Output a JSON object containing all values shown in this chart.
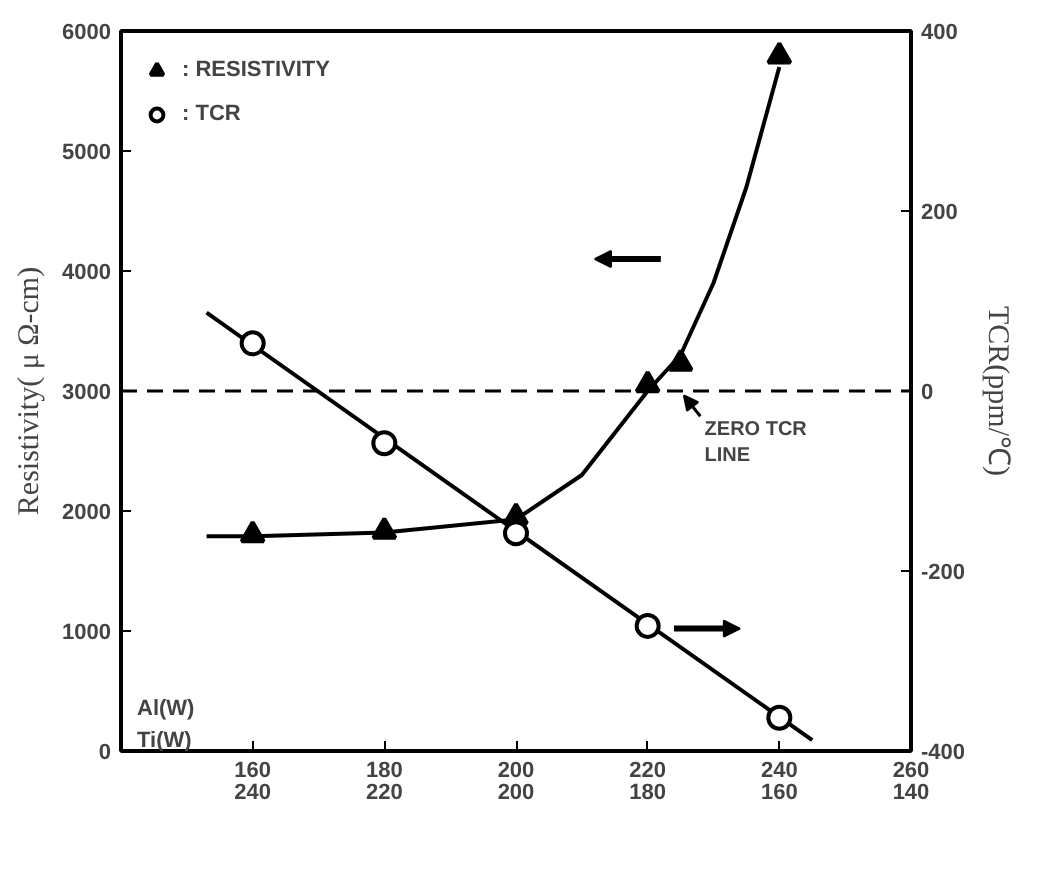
{
  "chart_data": {
    "type": "scatter",
    "xlabel": "Al(W)",
    "x2label": "Ti(W)",
    "ylabel": "Resistivity( μ Ω-cm)",
    "y2label": "TCR(ppm/℃)",
    "xlim": [
      140,
      260
    ],
    "xticks": [
      160,
      180,
      200,
      220,
      240,
      260
    ],
    "x2lim": [
      260,
      140
    ],
    "x2ticks": [
      240,
      220,
      200,
      180,
      160,
      140
    ],
    "ylim": [
      0,
      6000
    ],
    "yticks": [
      0,
      1000,
      2000,
      3000,
      4000,
      5000,
      6000
    ],
    "y2lim": [
      -400,
      400
    ],
    "y2ticks": [
      -400,
      -200,
      0,
      200,
      400
    ],
    "series": [
      {
        "type": "line",
        "color": "#000000",
        "marker": "none",
        "line_style": "solid",
        "x": [
          153,
          160,
          180,
          200,
          210,
          220,
          225,
          230,
          235,
          240
        ],
        "values": [
          1790,
          1790,
          1820,
          1930,
          2300,
          3000,
          3300,
          3900,
          4700,
          5700
        ]
      },
      {
        "type": "line",
        "color": "#000000",
        "marker": "none",
        "line_style": "solid",
        "axis": "y2",
        "x": [
          153,
          245
        ],
        "values": [
          87,
          -388
        ]
      },
      {
        "name": ": RESISTIVITY",
        "color": "#000000",
        "marker": "triangle",
        "x": [
          160,
          180,
          200,
          220,
          225,
          240
        ],
        "values": [
          1800,
          1830,
          1950,
          3050,
          3230,
          5790
        ]
      },
      {
        "name": ": TCR",
        "color": "#000000",
        "marker": "circle",
        "axis": "y2",
        "x": [
          160,
          180,
          200,
          220,
          240
        ],
        "values": [
          53,
          -58,
          -158,
          -261,
          -363
        ]
      }
    ],
    "ref_lines": [
      {
        "axis": "y2",
        "value": 0,
        "label": "ZERO TCR LINE",
        "line_style": "dashed",
        "color": "#000000"
      }
    ],
    "legend": "top left",
    "grid": false
  }
}
